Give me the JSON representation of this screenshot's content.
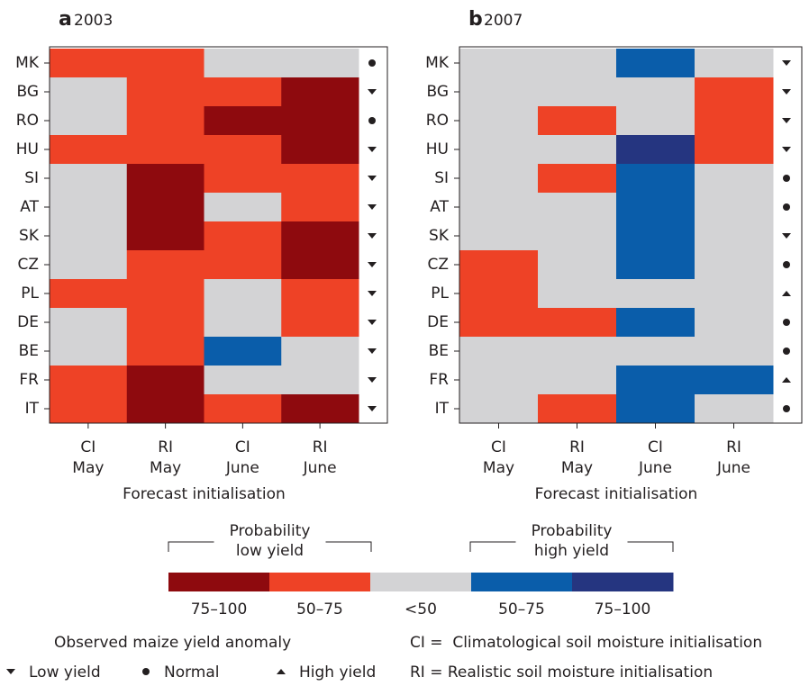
{
  "chart_data": [
    {
      "type": "heatmap",
      "panel": "a",
      "title": "2003",
      "rows": [
        "MK",
        "BG",
        "RO",
        "HU",
        "SI",
        "AT",
        "SK",
        "CZ",
        "PL",
        "DE",
        "BE",
        "FR",
        "IT"
      ],
      "categories": [
        [
          "CI",
          "May"
        ],
        [
          "RI",
          "May"
        ],
        [
          "CI",
          "June"
        ],
        [
          "RI",
          "June"
        ]
      ],
      "x_label": "Forecast initialisation",
      "cells": [
        [
          1,
          1,
          2,
          2
        ],
        [
          2,
          1,
          1,
          0
        ],
        [
          2,
          1,
          0,
          0
        ],
        [
          1,
          1,
          1,
          0
        ],
        [
          2,
          0,
          1,
          1
        ],
        [
          2,
          0,
          2,
          1
        ],
        [
          2,
          0,
          1,
          0
        ],
        [
          2,
          1,
          1,
          0
        ],
        [
          1,
          1,
          2,
          1
        ],
        [
          2,
          1,
          2,
          1
        ],
        [
          2,
          1,
          3,
          2
        ],
        [
          1,
          0,
          2,
          2
        ],
        [
          1,
          0,
          1,
          0
        ]
      ],
      "observed": [
        1,
        0,
        1,
        0,
        0,
        0,
        0,
        0,
        0,
        0,
        0,
        0,
        0
      ]
    },
    {
      "type": "heatmap",
      "panel": "b",
      "title": "2007",
      "rows": [
        "MK",
        "BG",
        "RO",
        "HU",
        "SI",
        "AT",
        "SK",
        "CZ",
        "PL",
        "DE",
        "BE",
        "FR",
        "IT"
      ],
      "categories": [
        [
          "CI",
          "May"
        ],
        [
          "RI",
          "May"
        ],
        [
          "CI",
          "June"
        ],
        [
          "RI",
          "June"
        ]
      ],
      "x_label": "Forecast initialisation",
      "cells": [
        [
          2,
          2,
          3,
          2
        ],
        [
          2,
          2,
          2,
          1
        ],
        [
          2,
          1,
          2,
          1
        ],
        [
          2,
          2,
          4,
          1
        ],
        [
          2,
          1,
          3,
          2
        ],
        [
          2,
          2,
          3,
          2
        ],
        [
          2,
          2,
          3,
          2
        ],
        [
          1,
          2,
          3,
          2
        ],
        [
          1,
          2,
          2,
          2
        ],
        [
          1,
          1,
          3,
          2
        ],
        [
          2,
          2,
          2,
          2
        ],
        [
          2,
          2,
          3,
          3
        ],
        [
          2,
          1,
          3,
          2
        ]
      ],
      "observed": [
        0,
        0,
        0,
        0,
        1,
        1,
        0,
        1,
        2,
        1,
        1,
        2,
        1
      ]
    }
  ],
  "legend": {
    "low_title": [
      "Probability",
      "low yield"
    ],
    "high_title": [
      "Probability",
      "high yield"
    ],
    "classes": [
      {
        "label": "75–100",
        "color": "#8e0a0e"
      },
      {
        "label": "50–75",
        "color": "#ee4226"
      },
      {
        "label": "<50",
        "color": "#d3d3d5"
      },
      {
        "label": "50–75",
        "color": "#0a5daa"
      },
      {
        "label": "75–100",
        "color": "#253580"
      }
    ],
    "observed_title": "Observed maize yield anomaly",
    "markers": [
      {
        "symbol": "triangle-down",
        "label": "Low yield"
      },
      {
        "symbol": "circle",
        "label": "Normal"
      },
      {
        "symbol": "triangle-up",
        "label": "High yield"
      }
    ],
    "notes": [
      "CI =  Climatological soil moisture initialisation",
      "RI = Realistic soil moisture initialisation"
    ]
  }
}
